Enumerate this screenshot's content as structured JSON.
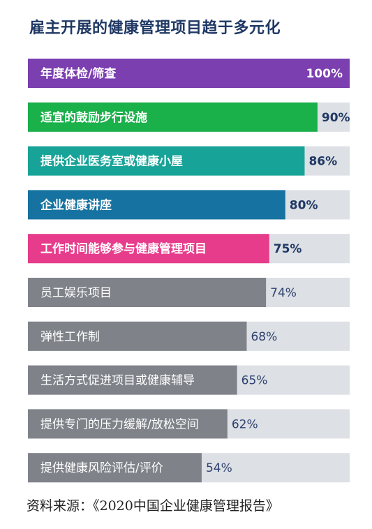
{
  "chart_data": {
    "type": "bar",
    "orientation": "horizontal",
    "title": "雇主开展的健康管理项目趋于多元化",
    "xlim": [
      0,
      100
    ],
    "unit": "%",
    "grid": false,
    "categories": [
      "年度体检/筛查",
      "适宜的鼓励步行设施",
      "提供企业医务室或健康小屋",
      "企业健康讲座",
      "工作时间能够参与健康管理项目",
      "员工娱乐项目",
      "弹性工作制",
      "生活方式促进项目或健康辅导",
      "提供专门的压力缓解/放松空间",
      "提供健康风险评估/评价"
    ],
    "values": [
      100,
      90,
      86,
      80,
      75,
      74,
      68,
      65,
      62,
      54
    ],
    "value_labels": [
      "100%",
      "90%",
      "86%",
      "80%",
      "75%",
      "74%",
      "68%",
      "65%",
      "62%",
      "54%"
    ],
    "bar_colors": [
      "#7b3fb0",
      "#1ab04a",
      "#17a398",
      "#1672a0",
      "#e63c8b",
      "#7f8389",
      "#7f8389",
      "#7f8389",
      "#7f8389",
      "#7f8389"
    ],
    "highlight_count": 5,
    "track_color": "#dde0e4",
    "label_color": "#ffffff",
    "value_color_highlight": "#1f3864",
    "value_color_gray": "#2e4270"
  },
  "source": "资料来源：《2020中国企业健康管理报告》"
}
